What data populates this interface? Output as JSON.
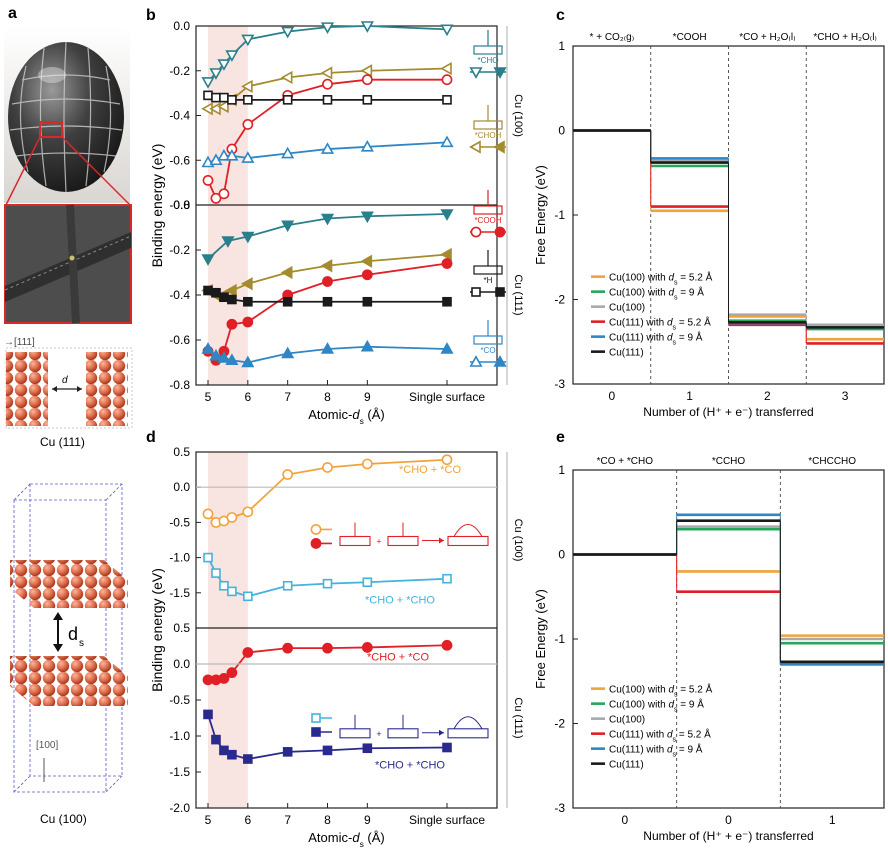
{
  "panel_letters": {
    "a": "a",
    "b": "b",
    "c": "c",
    "d": "d",
    "e": "e"
  },
  "panel_a": {
    "caption_111": "Cu (111)",
    "caption_100": "Cu (100)",
    "dir_111": "→[111]",
    "dir_100": "[100]",
    "ds_label": "d",
    "ds_sub": "s",
    "d_small": "d",
    "colors": {
      "atom": "#e0704e",
      "atom_edge": "#b5452a",
      "egg": "#3a3a3a",
      "inset": "#4d4d4d",
      "red_box": "#d8282a"
    }
  },
  "colors": {
    "teal": "#2a7f8c",
    "olive": "#a38b2e",
    "red": "#e01f26",
    "black": "#1a1a1a",
    "blue": "#2f86c5",
    "orange": "#f2a23a",
    "cyan": "#42b3dd",
    "navy": "#2a2a8e",
    "green": "#25a65a",
    "gray": "#a9a9a9",
    "shade": "#f8e4e0"
  },
  "chart_data": [
    {
      "id": "b",
      "type": "line",
      "ylabel": "Binding energy (eV)",
      "xlabel_main": "Atomic-",
      "xlabel_var": "d",
      "xlabel_sub": "s",
      "xlabel_unit": " (Å)",
      "xticks": [
        "5",
        "6",
        "7",
        "8",
        "9",
        "Single surface"
      ],
      "side_labels": [
        "Cu (100)",
        "Cu (111)"
      ],
      "top": {
        "ylim": [
          -0.8,
          0.0
        ],
        "yticks": [
          "0.0",
          "-0.2",
          "-0.4",
          "-0.6",
          "-0.8"
        ],
        "series": [
          {
            "key": "CHO",
            "color": "teal",
            "marker": "tri-down-open",
            "x": [
              5,
              5.2,
              5.4,
              5.6,
              6,
              7,
              8,
              9,
              11
            ],
            "y": [
              -0.25,
              -0.21,
              -0.17,
              -0.13,
              -0.06,
              -0.025,
              -0.005,
              0.0,
              -0.015
            ]
          },
          {
            "key": "CHOH",
            "color": "olive",
            "marker": "tri-left-open",
            "x": [
              5,
              5.2,
              5.4,
              5.6,
              6,
              7,
              8,
              9,
              11
            ],
            "y": [
              -0.37,
              -0.37,
              -0.36,
              -0.33,
              -0.27,
              -0.23,
              -0.21,
              -0.2,
              -0.19
            ]
          },
          {
            "key": "COOH",
            "color": "red",
            "marker": "circle-open",
            "x": [
              5,
              5.2,
              5.4,
              5.6,
              6,
              7,
              8,
              9,
              11
            ],
            "y": [
              -0.69,
              -0.77,
              -0.75,
              -0.55,
              -0.44,
              -0.31,
              -0.26,
              -0.24,
              -0.24
            ]
          },
          {
            "key": "H",
            "color": "black",
            "marker": "square-open",
            "x": [
              5,
              5.2,
              5.4,
              5.6,
              6,
              7,
              8,
              9,
              11
            ],
            "y": [
              -0.31,
              -0.32,
              -0.32,
              -0.33,
              -0.33,
              -0.33,
              -0.33,
              -0.33,
              -0.33
            ]
          },
          {
            "key": "CO",
            "color": "blue",
            "marker": "tri-up-open",
            "x": [
              5,
              5.2,
              5.4,
              5.6,
              6,
              7,
              8,
              9,
              11
            ],
            "y": [
              -0.61,
              -0.6,
              -0.58,
              -0.58,
              -0.59,
              -0.57,
              -0.55,
              -0.54,
              -0.52
            ]
          }
        ]
      },
      "bottom": {
        "ylim": [
          -0.8,
          0.0
        ],
        "yticks": [
          "0.0",
          "-0.2",
          "-0.4",
          "-0.6",
          "-0.8"
        ],
        "series": [
          {
            "key": "CHO",
            "color": "teal",
            "marker": "tri-down",
            "x": [
              5,
              5.5,
              6,
              7,
              8,
              9,
              11
            ],
            "y": [
              -0.24,
              -0.16,
              -0.14,
              -0.09,
              -0.06,
              -0.05,
              -0.04
            ]
          },
          {
            "key": "CHOH",
            "color": "olive",
            "marker": "tri-left",
            "x": [
              5,
              5.2,
              5.4,
              5.6,
              6,
              7,
              8,
              9,
              11
            ],
            "y": [
              -0.38,
              -0.4,
              -0.4,
              -0.38,
              -0.35,
              -0.3,
              -0.27,
              -0.25,
              -0.22
            ]
          },
          {
            "key": "COOH",
            "color": "red",
            "marker": "circle",
            "x": [
              5,
              5.2,
              5.4,
              5.6,
              6,
              7,
              8,
              9,
              11
            ],
            "y": [
              -0.65,
              -0.69,
              -0.65,
              -0.53,
              -0.52,
              -0.4,
              -0.34,
              -0.31,
              -0.26
            ]
          },
          {
            "key": "H",
            "color": "black",
            "marker": "square",
            "x": [
              5,
              5.2,
              5.4,
              5.6,
              6,
              7,
              8,
              9,
              11
            ],
            "y": [
              -0.38,
              -0.39,
              -0.41,
              -0.42,
              -0.43,
              -0.43,
              -0.43,
              -0.43,
              -0.43
            ]
          },
          {
            "key": "CO",
            "color": "blue",
            "marker": "tri-up",
            "x": [
              5,
              5.2,
              5.4,
              5.6,
              6,
              7,
              8,
              9,
              11
            ],
            "y": [
              -0.64,
              -0.67,
              -0.68,
              -0.69,
              -0.7,
              -0.66,
              -0.64,
              -0.63,
              -0.64
            ]
          }
        ]
      },
      "legend": [
        {
          "key": "CHO",
          "label": "*CHO",
          "color": "teal"
        },
        {
          "key": "CHOH",
          "label": "*CHOH",
          "color": "olive"
        },
        {
          "key": "COOH",
          "label": "*COOH",
          "color": "red"
        },
        {
          "key": "H",
          "label": "*H",
          "color": "black"
        },
        {
          "key": "CO",
          "label": "*CO",
          "color": "blue"
        }
      ]
    },
    {
      "id": "c",
      "type": "line",
      "ylabel": "Free Energy (eV)",
      "xlabel": "Number of (H⁺ + e⁻) transferred",
      "ylim": [
        -3,
        1
      ],
      "yticks": [
        "1",
        "0",
        "-1",
        "-2",
        "-3"
      ],
      "xticks": [
        "0",
        "1",
        "2",
        "3"
      ],
      "states": [
        "* + CO₂₍g₎",
        "*COOH",
        "*CO + H₂O₍l₎",
        "*CHO + H₂O₍l₎"
      ],
      "steps": [
        {
          "series": "Cu(100) with ds = 5.2 Å",
          "color": "orange",
          "values": [
            0,
            -0.95,
            -2.2,
            -2.47
          ]
        },
        {
          "series": "Cu(100) with ds = 9 Å",
          "color": "green",
          "values": [
            0,
            -0.42,
            -2.25,
            -2.35
          ]
        },
        {
          "series": "Cu(100)",
          "color": "gray",
          "values": [
            0,
            -0.36,
            -2.18,
            -2.3
          ]
        },
        {
          "series": "Cu(111) with ds = 5.2 Å",
          "color": "red",
          "values": [
            0,
            -0.9,
            -2.3,
            -2.52
          ]
        },
        {
          "series": "Cu(111) with ds = 9 Å",
          "color": "blue",
          "values": [
            0,
            -0.33,
            -2.28,
            -2.33
          ]
        },
        {
          "series": "Cu(111)",
          "color": "black",
          "values": [
            0,
            -0.38,
            -2.27,
            -2.33
          ]
        }
      ],
      "legend": [
        {
          "pre": "Cu(100) with ",
          "var": "d",
          "sub": "s",
          "post": " = 5.2 Å",
          "color": "orange"
        },
        {
          "pre": "Cu(100) with ",
          "var": "d",
          "sub": "s",
          "post": " = 9 Å",
          "color": "green"
        },
        {
          "pre": "Cu(100)",
          "var": "",
          "sub": "",
          "post": "",
          "color": "gray"
        },
        {
          "pre": "Cu(111) with ",
          "var": "d",
          "sub": "s",
          "post": " = 5.2 Å",
          "color": "red"
        },
        {
          "pre": "Cu(111) with ",
          "var": "d",
          "sub": "s",
          "post": " = 9 Å",
          "color": "blue"
        },
        {
          "pre": "Cu(111)",
          "var": "",
          "sub": "",
          "post": "",
          "color": "black"
        }
      ]
    },
    {
      "id": "d",
      "type": "line",
      "ylabel": "Binding energy (eV)",
      "xlabel_main": "Atomic-",
      "xlabel_var": "d",
      "xlabel_sub": "s",
      "xlabel_unit": " (Å)",
      "xticks": [
        "5",
        "6",
        "7",
        "8",
        "9",
        "Single surface"
      ],
      "side_labels": [
        "Cu (100)",
        "Cu (111)"
      ],
      "top": {
        "ylim": [
          -2.0,
          0.5
        ],
        "yticks": [
          "0.5",
          "0.0",
          "-0.5",
          "-1.0",
          "-1.5"
        ],
        "series": [
          {
            "key": "CHO_CO_100",
            "color": "orange",
            "marker": "circle-open",
            "x": [
              5,
              5.2,
              5.4,
              5.6,
              6,
              7,
              8,
              9,
              11
            ],
            "y": [
              -0.38,
              -0.5,
              -0.48,
              -0.43,
              -0.35,
              0.18,
              0.28,
              0.33,
              0.39
            ]
          },
          {
            "key": "CHO_CHO_100",
            "color": "cyan",
            "marker": "square-open",
            "x": [
              5,
              5.2,
              5.4,
              5.6,
              6,
              7,
              8,
              9,
              11
            ],
            "y": [
              -1.0,
              -1.22,
              -1.4,
              -1.48,
              -1.55,
              -1.4,
              -1.37,
              -1.35,
              -1.3
            ]
          }
        ],
        "labels": [
          "*CHO + *CO",
          "*CHO + *CHO"
        ]
      },
      "bottom": {
        "ylim": [
          -2.0,
          0.5
        ],
        "yticks": [
          "0.5",
          "0.0",
          "-0.5",
          "-1.0",
          "-1.5",
          "-2.0"
        ],
        "series": [
          {
            "key": "CHO_CO_111",
            "color": "red",
            "marker": "circle",
            "x": [
              5,
              5.2,
              5.4,
              5.6,
              6,
              7,
              8,
              9,
              11
            ],
            "y": [
              -0.22,
              -0.22,
              -0.2,
              -0.12,
              0.16,
              0.22,
              0.22,
              0.23,
              0.26
            ]
          },
          {
            "key": "CHO_CHO_111",
            "color": "navy",
            "marker": "square",
            "x": [
              5,
              5.2,
              5.4,
              5.6,
              6,
              7,
              8,
              9,
              11
            ],
            "y": [
              -0.7,
              -1.05,
              -1.2,
              -1.26,
              -1.32,
              -1.22,
              -1.2,
              -1.17,
              -1.16
            ]
          }
        ],
        "labels": [
          "*CHO + *CO",
          "*CHO + *CHO"
        ]
      }
    },
    {
      "id": "e",
      "type": "line",
      "ylabel": "Free Energy (eV)",
      "xlabel": "Number of (H⁺ + e⁻) transferred",
      "ylim": [
        -3,
        1
      ],
      "yticks": [
        "1",
        "0",
        "-1",
        "-2",
        "-3"
      ],
      "xticks": [
        "0",
        "0",
        "1"
      ],
      "states": [
        "*CO + *CHO",
        "*CCHO",
        "*CHCCHO"
      ],
      "steps": [
        {
          "series": "Cu(100) with ds = 5.2 Å",
          "color": "orange",
          "values": [
            0,
            -0.2,
            -0.96
          ]
        },
        {
          "series": "Cu(100) with ds = 9 Å",
          "color": "green",
          "values": [
            0,
            0.3,
            -1.05
          ]
        },
        {
          "series": "Cu(100)",
          "color": "gray",
          "values": [
            0,
            0.33,
            -1.0
          ]
        },
        {
          "series": "Cu(111) with ds = 5.2 Å",
          "color": "red",
          "values": [
            0,
            -0.44,
            -1.3
          ]
        },
        {
          "series": "Cu(111) with ds = 9 Å",
          "color": "blue",
          "values": [
            0,
            0.47,
            -1.3
          ]
        },
        {
          "series": "Cu(111)",
          "color": "black",
          "values": [
            0,
            0.4,
            -1.27
          ]
        }
      ],
      "legend": [
        {
          "pre": "Cu(100) with ",
          "var": "d",
          "sub": "s",
          "post": " = 5.2 Å",
          "color": "orange"
        },
        {
          "pre": "Cu(100) with ",
          "var": "d",
          "sub": "s",
          "post": " = 9 Å",
          "color": "green"
        },
        {
          "pre": "Cu(100)",
          "var": "",
          "sub": "",
          "post": "",
          "color": "gray"
        },
        {
          "pre": "Cu(111) with ",
          "var": "d",
          "sub": "s",
          "post": " = 5.2 Å",
          "color": "red"
        },
        {
          "pre": "Cu(111) with ",
          "var": "d",
          "sub": "s",
          "post": " = 9 Å",
          "color": "blue"
        },
        {
          "pre": "Cu(111)",
          "var": "",
          "sub": "",
          "post": "",
          "color": "black"
        }
      ]
    }
  ]
}
